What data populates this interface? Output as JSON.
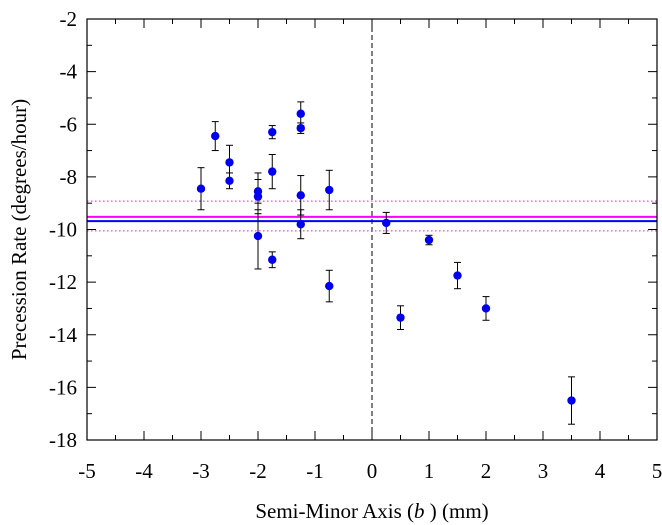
{
  "chart_data": {
    "type": "scatter",
    "title": "",
    "xlabel_parts": [
      "Semi-Minor Axis (",
      "b",
      " ) (mm)"
    ],
    "ylabel": "Precession Rate (degrees/hour)",
    "xlim": [
      -5,
      5
    ],
    "ylim": [
      -18,
      -2
    ],
    "x_ticks": [
      -5,
      -4,
      -3,
      -2,
      -1,
      0,
      1,
      2,
      3,
      4,
      5
    ],
    "y_ticks": [
      -18,
      -16,
      -14,
      -12,
      -10,
      -8,
      -6,
      -4,
      -2
    ],
    "x_tick_labels": [
      "-5",
      "-4",
      "-3",
      "-2",
      "-1",
      "0",
      "1",
      "2",
      "3",
      "4",
      "5"
    ],
    "y_tick_labels": [
      "-18",
      "-16",
      "-14",
      "-12",
      "-10",
      "-8",
      "-6",
      "-4",
      "-2"
    ],
    "grid": false,
    "vertical_reference_x": 0,
    "horizontal_lines": [
      {
        "y": -9.68,
        "color": "#0000ff",
        "style": "solid"
      },
      {
        "y": -9.52,
        "color": "#ff00ff",
        "style": "solid"
      },
      {
        "y": -8.92,
        "color": "#ff00ff",
        "style": "dotted"
      },
      {
        "y": -10.05,
        "color": "#ff00ff",
        "style": "dotted"
      }
    ],
    "marker_color": "#0000ee",
    "points": [
      {
        "x": -3.0,
        "y": -8.45,
        "err": 0.8
      },
      {
        "x": -2.75,
        "y": -6.45,
        "err": 0.55
      },
      {
        "x": -2.5,
        "y": -7.45,
        "err": 0.65
      },
      {
        "x": -2.5,
        "y": -8.15,
        "err": 0.3
      },
      {
        "x": -2.0,
        "y": -8.55,
        "err": 0.7
      },
      {
        "x": -2.0,
        "y": -8.75,
        "err": 0.65
      },
      {
        "x": -2.0,
        "y": -10.25,
        "err": 1.25
      },
      {
        "x": -1.75,
        "y": -6.3,
        "err": 0.25
      },
      {
        "x": -1.75,
        "y": -7.8,
        "err": 0.65
      },
      {
        "x": -1.75,
        "y": -11.15,
        "err": 0.3
      },
      {
        "x": -1.25,
        "y": -5.6,
        "err": 0.45
      },
      {
        "x": -1.25,
        "y": -6.15,
        "err": 0.2
      },
      {
        "x": -1.25,
        "y": -8.7,
        "err": 0.75
      },
      {
        "x": -1.25,
        "y": -9.8,
        "err": 0.55
      },
      {
        "x": -0.75,
        "y": -8.5,
        "err": 0.75
      },
      {
        "x": -0.75,
        "y": -12.15,
        "err": 0.6
      },
      {
        "x": 0.25,
        "y": -9.75,
        "err": 0.4
      },
      {
        "x": 0.5,
        "y": -13.35,
        "err": 0.45
      },
      {
        "x": 1.0,
        "y": -10.4,
        "err": 0.18
      },
      {
        "x": 1.5,
        "y": -11.75,
        "err": 0.5
      },
      {
        "x": 2.0,
        "y": -13.0,
        "err": 0.45
      },
      {
        "x": 3.5,
        "y": -16.5,
        "err": 0.9
      }
    ]
  }
}
